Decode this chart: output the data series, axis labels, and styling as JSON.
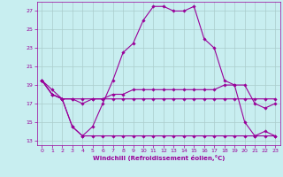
{
  "title": "",
  "xlabel": "Windchill (Refroidissement éolien,°C)",
  "bg_color": "#c8eef0",
  "line_color": "#990099",
  "grid_color": "#aacccc",
  "xlim": [
    -0.5,
    23.5
  ],
  "ylim": [
    12.5,
    28.0
  ],
  "yticks": [
    13,
    15,
    17,
    19,
    21,
    23,
    25,
    27
  ],
  "xticks": [
    0,
    1,
    2,
    3,
    4,
    5,
    6,
    7,
    8,
    9,
    10,
    11,
    12,
    13,
    14,
    15,
    16,
    17,
    18,
    19,
    20,
    21,
    22,
    23
  ],
  "line1_y": [
    19.5,
    18.5,
    17.5,
    14.5,
    13.5,
    14.5,
    17.0,
    19.5,
    22.5,
    23.5,
    26.0,
    27.5,
    27.5,
    27.0,
    27.0,
    27.5,
    24.0,
    23.0,
    19.5,
    19.0,
    15.0,
    13.5,
    14.0,
    13.5
  ],
  "line2_y": [
    19.5,
    18.0,
    17.5,
    17.5,
    17.5,
    17.5,
    17.5,
    17.5,
    17.5,
    17.5,
    17.5,
    17.5,
    17.5,
    17.5,
    17.5,
    17.5,
    17.5,
    17.5,
    17.5,
    17.5,
    17.5,
    17.5,
    17.5,
    17.5
  ],
  "line3_y": [
    19.5,
    18.0,
    17.5,
    17.5,
    17.0,
    17.5,
    17.5,
    18.0,
    18.0,
    18.5,
    18.5,
    18.5,
    18.5,
    18.5,
    18.5,
    18.5,
    18.5,
    18.5,
    19.0,
    19.0,
    19.0,
    17.0,
    16.5,
    17.0
  ],
  "line4_y": [
    19.5,
    18.0,
    17.5,
    14.5,
    13.5,
    13.5,
    13.5,
    13.5,
    13.5,
    13.5,
    13.5,
    13.5,
    13.5,
    13.5,
    13.5,
    13.5,
    13.5,
    13.5,
    13.5,
    13.5,
    13.5,
    13.5,
    13.5,
    13.5
  ]
}
